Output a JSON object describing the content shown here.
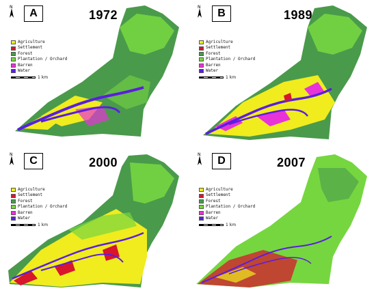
{
  "colors": {
    "agriculture": "#f0ec1e",
    "settlement": "#d8162c",
    "forest": "#4a9a4c",
    "plantation": "#76d640",
    "barren": "#e833d8",
    "water": "#5a1ee0"
  },
  "legend": [
    {
      "label": "Agriculture",
      "color": "#f0ec1e"
    },
    {
      "label": "Settlement",
      "color": "#d8162c"
    },
    {
      "label": "Forest",
      "color": "#4a9a4c"
    },
    {
      "label": "Plantation / Orchard",
      "color": "#76d640"
    },
    {
      "label": "Barren",
      "color": "#e833d8"
    },
    {
      "label": "Water",
      "color": "#5a1ee0"
    }
  ],
  "scale_label": "1 km",
  "north_label": "N",
  "panels": [
    {
      "letter": "A",
      "year": "1972"
    },
    {
      "letter": "B",
      "year": "1989"
    },
    {
      "letter": "C",
      "year": "2000"
    },
    {
      "letter": "D",
      "year": "2007"
    }
  ]
}
